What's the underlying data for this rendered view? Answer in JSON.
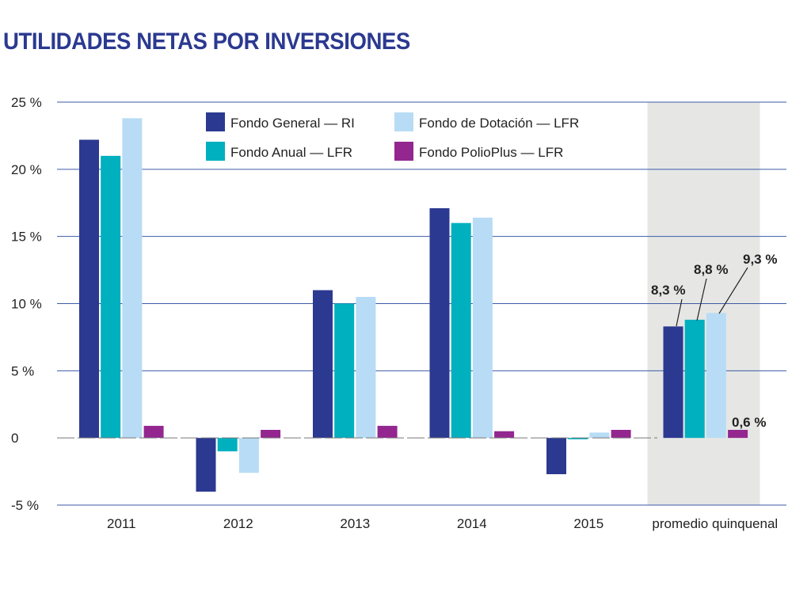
{
  "chart_data": {
    "type": "bar",
    "title": "UTILIDADES NETAS POR INVERSIONES",
    "categories": [
      "2011",
      "2012",
      "2013",
      "2014",
      "2015",
      "promedio quinquenal"
    ],
    "series": [
      {
        "name": "Fondo General — RI",
        "color": "#2b3990",
        "values": [
          22.2,
          -4.0,
          11.0,
          17.1,
          -2.7,
          8.3
        ]
      },
      {
        "name": "Fondo Anual — LFR",
        "color": "#00b0bf",
        "values": [
          21.0,
          -1.0,
          10.0,
          16.0,
          -0.1,
          8.8
        ]
      },
      {
        "name": "Fondo de Dotación — LFR",
        "color": "#b8dcf5",
        "values": [
          23.8,
          -2.6,
          10.5,
          16.4,
          0.4,
          9.3
        ]
      },
      {
        "name": "Fondo PolioPlus — LFR",
        "color": "#93278f",
        "values": [
          0.9,
          0.6,
          0.9,
          0.5,
          0.6,
          0.6
        ]
      }
    ],
    "yticks": [
      {
        "value": 25,
        "label": "25 %"
      },
      {
        "value": 20,
        "label": "20 %"
      },
      {
        "value": 15,
        "label": "15 %"
      },
      {
        "value": 10,
        "label": "10 %"
      },
      {
        "value": 5,
        "label": "5 %"
      },
      {
        "value": 0,
        "label": "0"
      },
      {
        "value": -5,
        "label": "-5 %"
      }
    ],
    "ylim": [
      -5,
      25
    ],
    "grid": true,
    "legend_position": "top",
    "highlighted_category": "promedio quinquenal",
    "highlight_color": "#e6e7e5",
    "annotations": [
      {
        "series": 0,
        "category": 5,
        "text": "8,3 %"
      },
      {
        "series": 1,
        "category": 5,
        "text": "8,8 %"
      },
      {
        "series": 2,
        "category": 5,
        "text": "9,3 %"
      },
      {
        "series": 3,
        "category": 5,
        "text": "0,6 %"
      }
    ]
  }
}
